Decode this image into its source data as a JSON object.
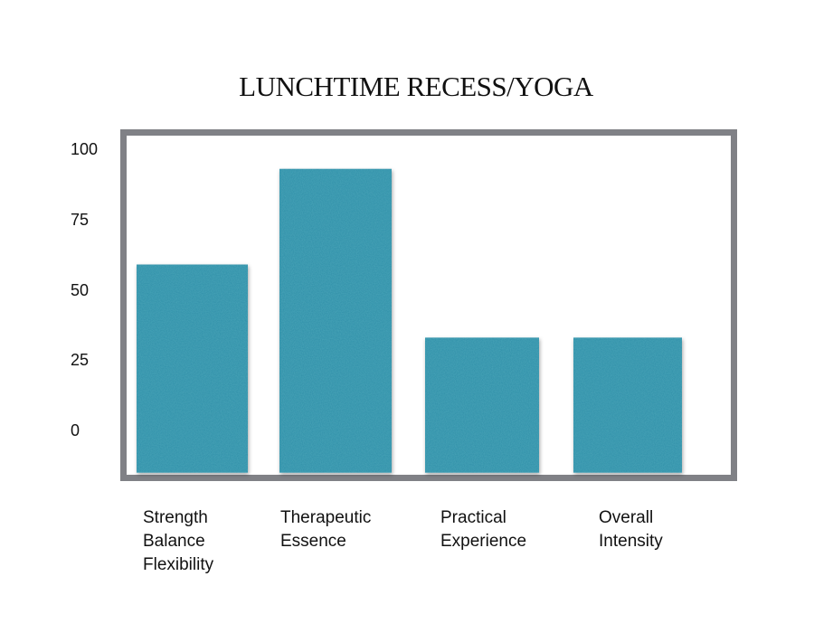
{
  "chart_data": {
    "type": "bar",
    "title": "LUNCHTIME RECESS/YOGA",
    "xlabel": "",
    "ylabel": "",
    "categories": [
      [
        "Strength",
        "Balance",
        "Flexibility"
      ],
      [
        "Therapeutic",
        "Essence"
      ],
      [
        "Practical",
        "Experience"
      ],
      [
        "Overall",
        "Intensity"
      ]
    ],
    "values": [
      59,
      93,
      33,
      33
    ],
    "yticks": [
      "100",
      "75",
      "50",
      "25",
      "0"
    ],
    "ylim": [
      -15,
      100
    ],
    "bar_color": "#2f8fa8",
    "frame_color": "#808186",
    "grid": false,
    "legend": "none"
  }
}
